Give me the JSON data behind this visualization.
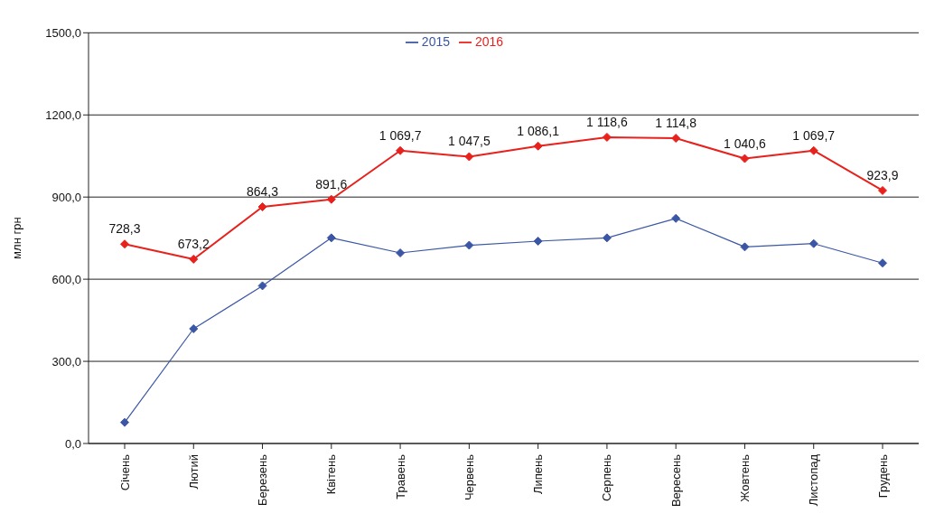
{
  "chart_data": {
    "type": "line",
    "ylabel": "млн грн",
    "categories": [
      "Січень",
      "Лютий",
      "Березень",
      "Квітень",
      "Травень",
      "Червень",
      "Липень",
      "Серпень",
      "Вересень",
      "Жовтень",
      "Листопад",
      "Грудень"
    ],
    "series": [
      {
        "name": "2015",
        "color": "#3a56a5",
        "values": [
          77,
          419,
          576,
          751,
          696,
          724,
          739,
          751,
          822,
          718,
          730,
          659
        ]
      },
      {
        "name": "2016",
        "color": "#e8211c",
        "values": [
          728.3,
          673.2,
          864.3,
          891.6,
          1069.7,
          1047.5,
          1086.1,
          1118.6,
          1114.8,
          1040.6,
          1069.7,
          923.9
        ],
        "value_labels": [
          "728,3",
          "673,2",
          "864,3",
          "891,6",
          "1 069,7",
          "1 047,5",
          "1 086,1",
          "1 118,6",
          "1 114,8",
          "1 040,6",
          "1 069,7",
          "923,9"
        ]
      }
    ],
    "ylim": [
      0,
      1500
    ],
    "yticks": [
      {
        "value": 0,
        "label": "0,0"
      },
      {
        "value": 300,
        "label": "300,0"
      },
      {
        "value": 600,
        "label": "600,0"
      },
      {
        "value": 900,
        "label": "900,0"
      },
      {
        "value": 1200,
        "label": "1200,0"
      },
      {
        "value": 1500,
        "label": "1500,0"
      }
    ],
    "grid": "y",
    "legend": "top",
    "marker": "diamond",
    "line_style": "solid"
  }
}
